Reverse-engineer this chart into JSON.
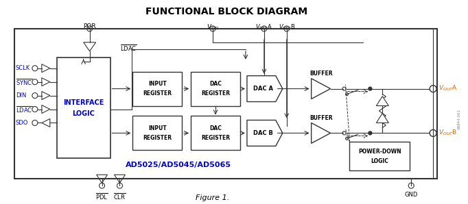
{
  "title": "FUNCTIONAL BLOCK DIAGRAM",
  "subtitle": "Figure 1.",
  "model": "AD5025/AD5045/AD5065",
  "bg_color": "#ffffff",
  "text_color": "#000000",
  "orange_color": "#cc6600",
  "blue_color": "#0000cc",
  "gray_color": "#333333",
  "figsize": [
    6.82,
    2.98
  ],
  "dpi": 100
}
